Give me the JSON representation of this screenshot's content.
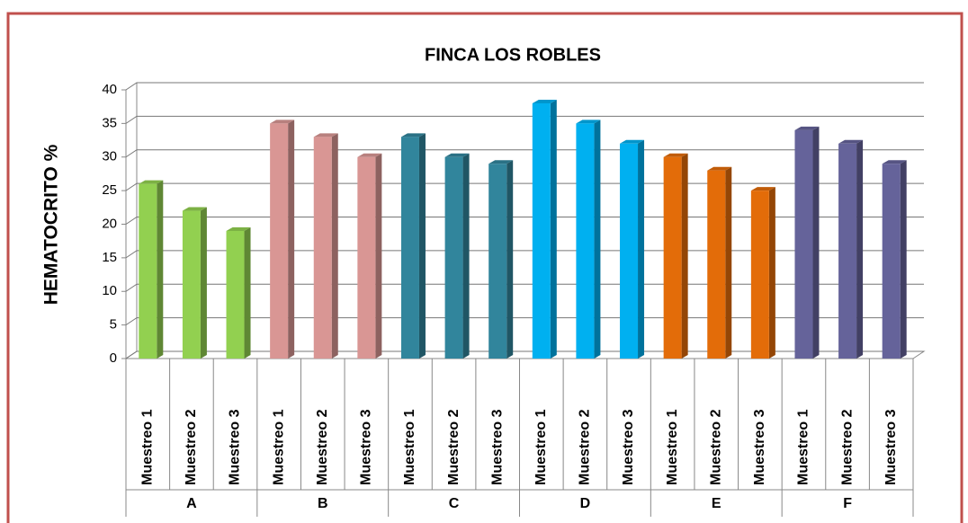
{
  "chart_data": {
    "type": "bar",
    "title": "FINCA LOS ROBLES",
    "ylabel": "HEMATOCRITO %",
    "ylim": [
      0,
      40
    ],
    "yticks": [
      0,
      5,
      10,
      15,
      20,
      25,
      30,
      35,
      40
    ],
    "grid": true,
    "groups": [
      {
        "name": "A",
        "color": "#92d050",
        "categories": [
          "Muestreo 1",
          "Muestreo 2",
          "Muestreo 3"
        ],
        "values": [
          26,
          22,
          19
        ]
      },
      {
        "name": "B",
        "color": "#d99694",
        "categories": [
          "Muestreo 1",
          "Muestreo 2",
          "Muestreo 3"
        ],
        "values": [
          35,
          33,
          30
        ]
      },
      {
        "name": "C",
        "color": "#31859c",
        "categories": [
          "Muestreo 1",
          "Muestreo 2",
          "Muestreo 3"
        ],
        "values": [
          33,
          30,
          29
        ]
      },
      {
        "name": "D",
        "color": "#00b0f0",
        "categories": [
          "Muestreo 1",
          "Muestreo 2",
          "Muestreo 3"
        ],
        "values": [
          38,
          35,
          32
        ]
      },
      {
        "name": "E",
        "color": "#e36c09",
        "categories": [
          "Muestreo 1",
          "Muestreo 2",
          "Muestreo 3"
        ],
        "values": [
          30,
          28,
          25
        ]
      },
      {
        "name": "F",
        "color": "#65639a",
        "categories": [
          "Muestreo 1",
          "Muestreo 2",
          "Muestreo 3"
        ],
        "values": [
          34,
          32,
          29
        ]
      }
    ]
  }
}
